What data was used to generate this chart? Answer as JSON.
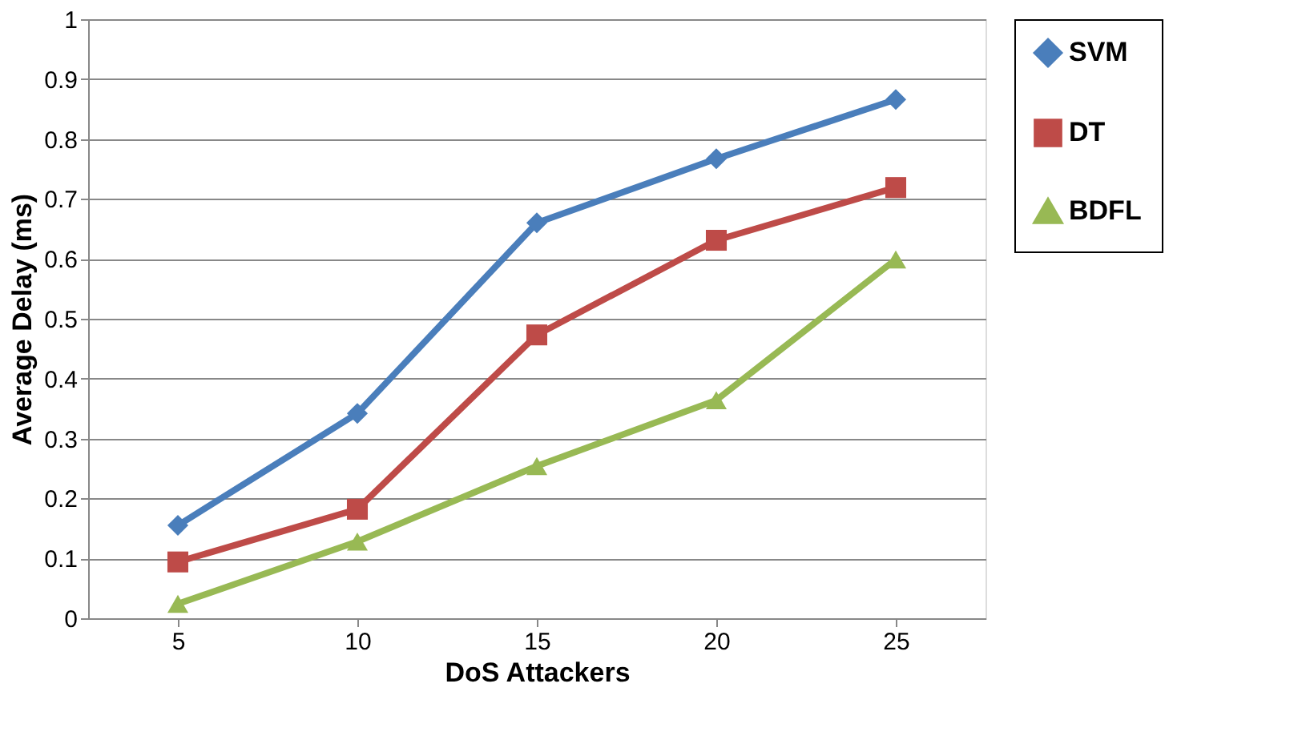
{
  "chart_data": {
    "type": "line",
    "xlabel": "DoS Attackers",
    "ylabel": "Average Delay (ms)",
    "categories": [
      "5",
      "10",
      "15",
      "20",
      "25"
    ],
    "ylim": [
      0,
      1
    ],
    "yticks": [
      0,
      0.1,
      0.2,
      0.3,
      0.4,
      0.5,
      0.6,
      0.7,
      0.8,
      0.9,
      1
    ],
    "grid": "y",
    "legend": "right",
    "line_style": "solid",
    "series": [
      {
        "name": "SVM",
        "color": "#4a7ebb",
        "marker": "diamond",
        "values": [
          0.155,
          0.342,
          0.66,
          0.767,
          0.866
        ]
      },
      {
        "name": "DT",
        "color": "#be4b48",
        "marker": "square",
        "values": [
          0.094,
          0.182,
          0.473,
          0.631,
          0.719
        ]
      },
      {
        "name": "BDFL",
        "color": "#98b954",
        "marker": "triangle",
        "values": [
          0.024,
          0.128,
          0.254,
          0.364,
          0.599
        ]
      }
    ]
  }
}
